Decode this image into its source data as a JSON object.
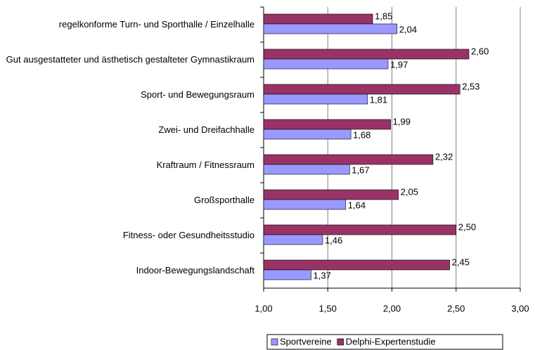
{
  "chart_data": {
    "type": "hbar",
    "categories": [
      "regelkonforme Turn- und Sporthalle / Einzelhalle",
      "Gut ausgestatteter und ästhetisch gestalteter Gymnastikraum",
      "Sport- und Bewegungsraum",
      "Zwei- und Dreifachhalle",
      "Kraftraum / Fitnessraum",
      "Großsporthalle",
      "Fitness- oder Gesundheitsstudio",
      "Indoor-Bewegungslandschaft"
    ],
    "series": [
      {
        "name": "Delphi-Expertenstudie",
        "color": "#993366",
        "values": [
          1.85,
          2.6,
          2.53,
          1.99,
          2.32,
          2.05,
          2.5,
          2.45
        ],
        "value_labels": [
          "1,85",
          "2,60",
          "2,53",
          "1,99",
          "2,32",
          "2,05",
          "2,50",
          "2,45"
        ]
      },
      {
        "name": "Sportvereine",
        "color": "#9999ff",
        "values": [
          2.04,
          1.97,
          1.81,
          1.68,
          1.67,
          1.64,
          1.46,
          1.37
        ],
        "value_labels": [
          "2,04",
          "1,97",
          "1,81",
          "1,68",
          "1,67",
          "1,64",
          "1,46",
          "1,37"
        ]
      }
    ],
    "xlim": [
      1,
      3
    ],
    "xticks": [
      {
        "value": 1,
        "label": "1,00"
      },
      {
        "value": 1.5,
        "label": "1,50"
      },
      {
        "value": 2,
        "label": "2,00"
      },
      {
        "value": 2.5,
        "label": "2,50"
      },
      {
        "value": 3,
        "label": "3,00"
      }
    ],
    "grid": true,
    "legend": "bottom"
  }
}
